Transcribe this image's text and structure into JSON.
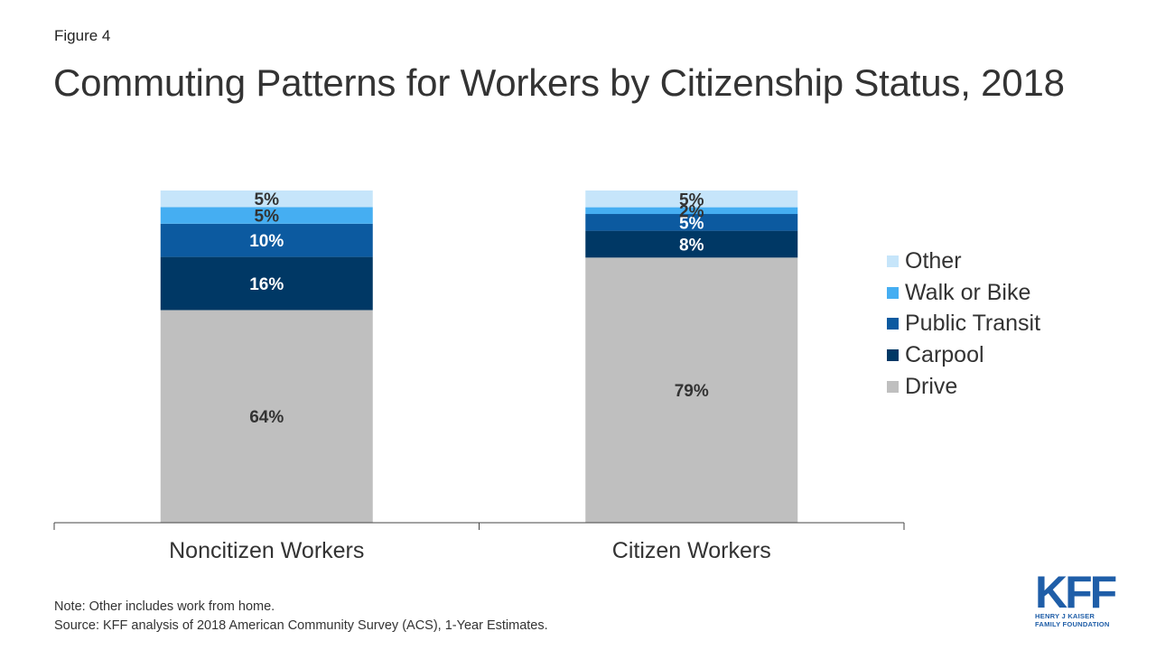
{
  "header": {
    "figure_label": "Figure 4",
    "title": "Commuting Patterns for Workers by Citizenship Status, 2018"
  },
  "chart_data": {
    "type": "bar",
    "stacked": true,
    "categories": [
      "Noncitizen Workers",
      "Citizen Workers"
    ],
    "series": [
      {
        "name": "Drive",
        "values": [
          64,
          79
        ],
        "labels": [
          "64%",
          "79%"
        ],
        "color": "#bfbfbf",
        "label_color": "#333333"
      },
      {
        "name": "Carpool",
        "values": [
          16,
          8
        ],
        "labels": [
          "16%",
          "8%"
        ],
        "color": "#003865",
        "label_color": "#ffffff"
      },
      {
        "name": "Public Transit",
        "values": [
          10,
          5
        ],
        "labels": [
          "10%",
          "5%"
        ],
        "color": "#0c5aa0",
        "label_color": "#ffffff"
      },
      {
        "name": "Walk or Bike",
        "values": [
          5,
          2
        ],
        "labels": [
          "5%",
          "2%"
        ],
        "color": "#45aef2",
        "label_color": "#333333"
      },
      {
        "name": "Other",
        "values": [
          5,
          5
        ],
        "labels": [
          "5%",
          "5%"
        ],
        "color": "#c6e5fa",
        "label_color": "#333333"
      }
    ],
    "legend_order": [
      "Other",
      "Walk or Bike",
      "Public Transit",
      "Carpool",
      "Drive"
    ],
    "legend_position": "right",
    "ylim": [
      0,
      100
    ],
    "grid": false
  },
  "footer": {
    "note": "Note: Other includes work from home.",
    "source": "Source: KFF analysis of 2018 American Community Survey (ACS), 1-Year Estimates."
  },
  "logo": {
    "mark": "KFF",
    "line1": "HENRY J KAISER",
    "line2": "FAMILY FOUNDATION",
    "color": "#1f5ea8"
  }
}
